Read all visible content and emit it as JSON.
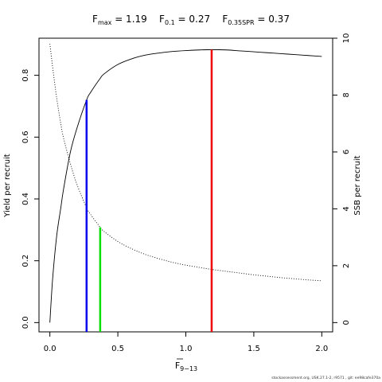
{
  "chart_data": {
    "type": "line",
    "title": {
      "fmax_label": "F",
      "fmax_sub": "max",
      "fmax_value": " = 1.19",
      "f01_label": "F",
      "f01_sub": "0.1",
      "f01_value": " = 0.27",
      "fspr_label": "F",
      "fspr_sub": "0.35SPR",
      "fspr_value": " = 0.37"
    },
    "xlabel": {
      "base": "F",
      "sub": "9−13"
    },
    "ylabel_left": "Yield per recruit",
    "ylabel_right": "SSB per recruit",
    "xlim": [
      -0.08,
      2.08
    ],
    "ylim_left": [
      -0.03,
      0.92
    ],
    "ylim_right": [
      -0.326,
      10.0
    ],
    "x_ticks": [
      0.0,
      0.5,
      1.0,
      1.5,
      2.0
    ],
    "x_tick_labels": [
      "0.0",
      "0.5",
      "1.0",
      "1.5",
      "2.0"
    ],
    "y_left_ticks": [
      0.0,
      0.2,
      0.4,
      0.6,
      0.8
    ],
    "y_left_tick_labels": [
      "0.0",
      "0.2",
      "0.4",
      "0.6",
      "0.8"
    ],
    "y_right_ticks": [
      0,
      2,
      4,
      6,
      8,
      10
    ],
    "y_right_tick_labels": [
      "0",
      "2",
      "4",
      "6",
      "8",
      "10"
    ],
    "series": [
      {
        "axis": "left",
        "style": "solid",
        "x": [
          0.0,
          0.02,
          0.05,
          0.08,
          0.1,
          0.15,
          0.2,
          0.27,
          0.3,
          0.37,
          0.4,
          0.5,
          0.6,
          0.7,
          0.8,
          0.9,
          1.0,
          1.1,
          1.19,
          1.3,
          1.4,
          1.5,
          1.6,
          1.7,
          1.8,
          1.9,
          2.0
        ],
        "values": [
          0.0,
          0.14,
          0.28,
          0.37,
          0.43,
          0.55,
          0.63,
          0.72,
          0.745,
          0.79,
          0.805,
          0.835,
          0.853,
          0.865,
          0.872,
          0.877,
          0.88,
          0.882,
          0.883,
          0.882,
          0.879,
          0.876,
          0.873,
          0.87,
          0.867,
          0.864,
          0.861
        ]
      },
      {
        "axis": "right",
        "style": "dotted",
        "x": [
          0.0,
          0.02,
          0.05,
          0.08,
          0.1,
          0.15,
          0.2,
          0.27,
          0.3,
          0.37,
          0.4,
          0.5,
          0.6,
          0.7,
          0.8,
          0.9,
          1.0,
          1.1,
          1.19,
          1.3,
          1.4,
          1.5,
          1.6,
          1.7,
          1.8,
          1.9,
          2.0
        ],
        "values": [
          9.8,
          9.0,
          7.9,
          7.0,
          6.5,
          5.6,
          4.85,
          4.04,
          3.8,
          3.35,
          3.2,
          2.85,
          2.6,
          2.4,
          2.25,
          2.12,
          2.02,
          1.94,
          1.87,
          1.8,
          1.74,
          1.68,
          1.63,
          1.58,
          1.54,
          1.5,
          1.47
        ]
      }
    ],
    "reference_lines": [
      {
        "x": 0.27,
        "value": 0.72,
        "axis": "left",
        "color": "#0000ee"
      },
      {
        "x": 0.37,
        "value": 3.35,
        "axis": "right",
        "color": "#00dd00"
      },
      {
        "x": 1.19,
        "value": 0.883,
        "axis": "left",
        "color": "#ee0000"
      }
    ]
  },
  "footer": "stockassessment.org, USK.27.1-2, r9571 , git: ee98cafe370a"
}
